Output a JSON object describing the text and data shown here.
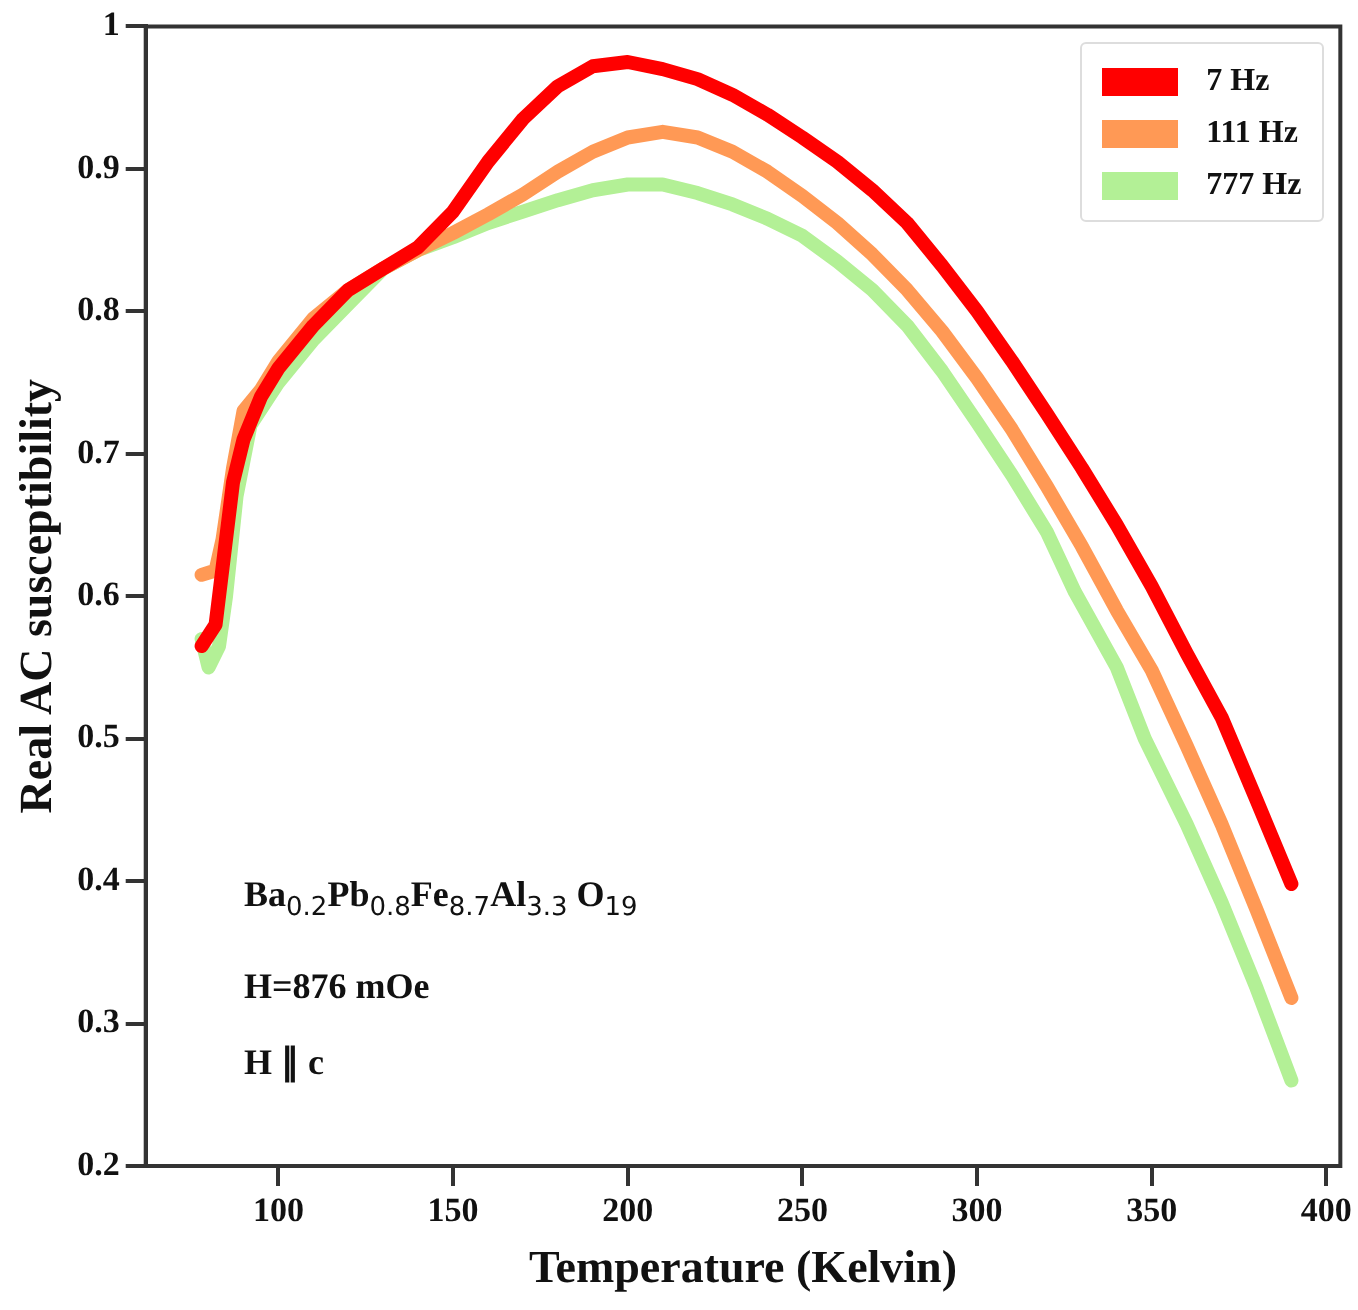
{
  "chart_data": {
    "type": "line",
    "xlabel": "Temperature (Kelvin)",
    "ylabel": "Real AC susceptibility",
    "xlim": [
      62,
      404
    ],
    "xticks": [
      100,
      150,
      200,
      250,
      300,
      350,
      400
    ],
    "ylim": [
      0.2,
      1.0
    ],
    "yticks": [
      0.2,
      0.3,
      0.4,
      0.5,
      0.6,
      0.7,
      0.8,
      0.9,
      1.0
    ],
    "grid": false,
    "legend": "top right",
    "marker": "none",
    "line_style": "solid",
    "annotations": [
      "Ba$_{0.2}$Pb$_{0.8}$Fe$_{8.7}$Al$_{3.3}$ O$_{19}$",
      "H=876 mOe",
      "H ∥ c"
    ],
    "series": [
      {
        "name": "7 Hz",
        "color": "#ff0000",
        "x": [
          78,
          82,
          84,
          87,
          90,
          95,
          100,
          110,
          120,
          130,
          140,
          150,
          160,
          170,
          180,
          190,
          200,
          210,
          220,
          230,
          240,
          250,
          260,
          270,
          280,
          290,
          300,
          310,
          320,
          330,
          340,
          350,
          360,
          370,
          380,
          390
        ],
        "values": [
          0.565,
          0.58,
          0.62,
          0.68,
          0.71,
          0.74,
          0.76,
          0.79,
          0.815,
          0.83,
          0.845,
          0.87,
          0.905,
          0.935,
          0.958,
          0.972,
          0.975,
          0.97,
          0.963,
          0.952,
          0.938,
          0.922,
          0.905,
          0.885,
          0.862,
          0.832,
          0.8,
          0.765,
          0.728,
          0.69,
          0.65,
          0.607,
          0.56,
          0.515,
          0.457,
          0.398
        ]
      },
      {
        "name": "111 Hz",
        "color": "#ff9955",
        "x": [
          78,
          82,
          84,
          87,
          90,
          95,
          100,
          110,
          120,
          130,
          140,
          150,
          160,
          170,
          180,
          190,
          200,
          210,
          220,
          230,
          240,
          250,
          260,
          270,
          280,
          290,
          300,
          310,
          320,
          330,
          340,
          350,
          360,
          370,
          380,
          390
        ],
        "values": [
          0.615,
          0.618,
          0.64,
          0.69,
          0.73,
          0.745,
          0.765,
          0.795,
          0.815,
          0.83,
          0.843,
          0.855,
          0.868,
          0.882,
          0.898,
          0.912,
          0.922,
          0.926,
          0.922,
          0.912,
          0.898,
          0.881,
          0.862,
          0.84,
          0.815,
          0.786,
          0.753,
          0.717,
          0.677,
          0.635,
          0.59,
          0.548,
          0.495,
          0.44,
          0.38,
          0.318
        ]
      },
      {
        "name": "777 Hz",
        "color": "#b3f096",
        "x": [
          78,
          80,
          83,
          85,
          88,
          92,
          100,
          110,
          120,
          130,
          140,
          150,
          160,
          170,
          180,
          190,
          200,
          210,
          220,
          230,
          240,
          250,
          260,
          270,
          280,
          290,
          300,
          310,
          320,
          328,
          340,
          348,
          360,
          370,
          380,
          390
        ],
        "values": [
          0.57,
          0.55,
          0.565,
          0.6,
          0.67,
          0.72,
          0.75,
          0.78,
          0.805,
          0.83,
          0.843,
          0.852,
          0.862,
          0.87,
          0.878,
          0.885,
          0.889,
          0.889,
          0.883,
          0.875,
          0.865,
          0.853,
          0.835,
          0.815,
          0.79,
          0.758,
          0.722,
          0.685,
          0.645,
          0.603,
          0.55,
          0.5,
          0.44,
          0.385,
          0.325,
          0.26
        ]
      }
    ]
  }
}
